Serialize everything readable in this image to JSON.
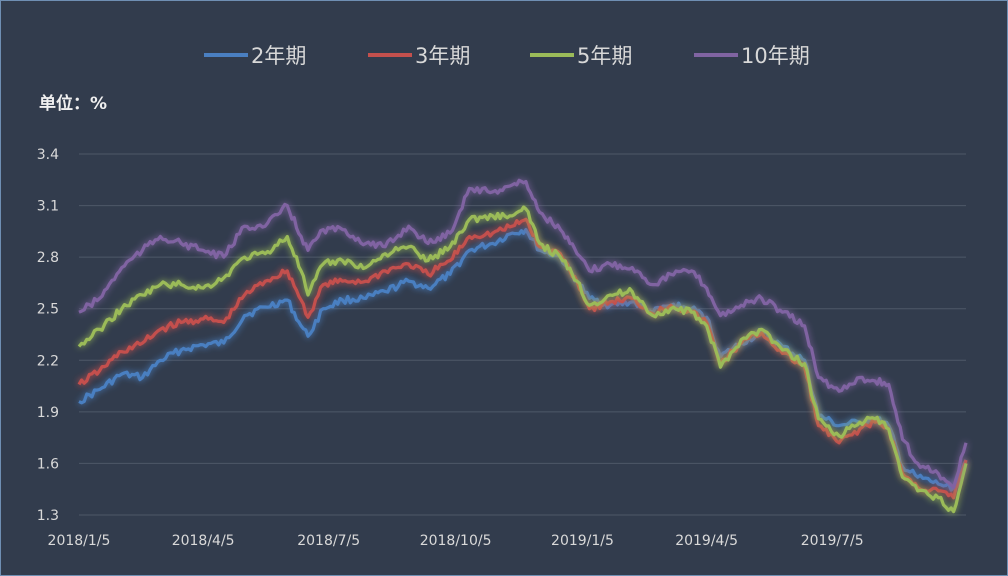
{
  "chart_data": {
    "type": "line",
    "title": "",
    "unit_label": "单位：%",
    "ylim": [
      1.3,
      3.4
    ],
    "yticks": [
      "1.3",
      "1.6",
      "1.9",
      "2.2",
      "2.5",
      "2.8",
      "3.1",
      "3.4"
    ],
    "xticks": [
      "2018/1/5",
      "2018/4/5",
      "2018/7/5",
      "2018/10/5",
      "2019/1/5",
      "2019/4/5",
      "2019/7/5"
    ],
    "grid": true,
    "legend_position": "top",
    "series": [
      {
        "name": "2年期",
        "color": "#4a7fc1",
        "points": [
          [
            "2018-01-05",
            1.96
          ],
          [
            "2018-01-20",
            2.03
          ],
          [
            "2018-02-05",
            2.12
          ],
          [
            "2018-02-20",
            2.1
          ],
          [
            "2018-03-05",
            2.2
          ],
          [
            "2018-03-20",
            2.26
          ],
          [
            "2018-04-05",
            2.29
          ],
          [
            "2018-04-20",
            2.3
          ],
          [
            "2018-05-05",
            2.46
          ],
          [
            "2018-05-20",
            2.51
          ],
          [
            "2018-06-05",
            2.55
          ],
          [
            "2018-06-15",
            2.4
          ],
          [
            "2018-06-20",
            2.34
          ],
          [
            "2018-07-01",
            2.5
          ],
          [
            "2018-07-15",
            2.55
          ],
          [
            "2018-08-01",
            2.56
          ],
          [
            "2018-08-15",
            2.6
          ],
          [
            "2018-09-01",
            2.66
          ],
          [
            "2018-09-15",
            2.62
          ],
          [
            "2018-10-01",
            2.7
          ],
          [
            "2018-10-15",
            2.84
          ],
          [
            "2018-11-01",
            2.88
          ],
          [
            "2018-11-15",
            2.94
          ],
          [
            "2018-11-25",
            2.96
          ],
          [
            "2018-12-05",
            2.84
          ],
          [
            "2018-12-20",
            2.8
          ],
          [
            "2019-01-01",
            2.66
          ],
          [
            "2019-01-10",
            2.56
          ],
          [
            "2019-01-25",
            2.52
          ],
          [
            "2019-02-10",
            2.54
          ],
          [
            "2019-02-25",
            2.48
          ],
          [
            "2019-03-10",
            2.52
          ],
          [
            "2019-03-25",
            2.5
          ],
          [
            "2019-04-05",
            2.45
          ],
          [
            "2019-04-15",
            2.22
          ],
          [
            "2019-04-30",
            2.3
          ],
          [
            "2019-05-15",
            2.36
          ],
          [
            "2019-05-30",
            2.28
          ],
          [
            "2019-06-15",
            2.2
          ],
          [
            "2019-06-25",
            1.88
          ],
          [
            "2019-07-10",
            1.82
          ],
          [
            "2019-07-25",
            1.84
          ],
          [
            "2019-08-05",
            1.86
          ],
          [
            "2019-08-15",
            1.82
          ],
          [
            "2019-08-25",
            1.58
          ],
          [
            "2019-09-05",
            1.52
          ],
          [
            "2019-09-20",
            1.48
          ],
          [
            "2019-10-01",
            1.46
          ],
          [
            "2019-10-10",
            1.62
          ]
        ]
      },
      {
        "name": "3年期",
        "color": "#c4504d",
        "points": [
          [
            "2018-01-05",
            2.06
          ],
          [
            "2018-01-20",
            2.14
          ],
          [
            "2018-02-05",
            2.25
          ],
          [
            "2018-02-20",
            2.3
          ],
          [
            "2018-03-05",
            2.38
          ],
          [
            "2018-03-20",
            2.42
          ],
          [
            "2018-04-05",
            2.44
          ],
          [
            "2018-04-20",
            2.42
          ],
          [
            "2018-05-05",
            2.58
          ],
          [
            "2018-05-20",
            2.66
          ],
          [
            "2018-06-05",
            2.72
          ],
          [
            "2018-06-15",
            2.55
          ],
          [
            "2018-06-20",
            2.45
          ],
          [
            "2018-07-01",
            2.64
          ],
          [
            "2018-07-15",
            2.66
          ],
          [
            "2018-08-01",
            2.66
          ],
          [
            "2018-08-15",
            2.72
          ],
          [
            "2018-09-01",
            2.76
          ],
          [
            "2018-09-15",
            2.7
          ],
          [
            "2018-10-01",
            2.78
          ],
          [
            "2018-10-15",
            2.92
          ],
          [
            "2018-11-01",
            2.94
          ],
          [
            "2018-11-15",
            2.98
          ],
          [
            "2018-11-25",
            3.02
          ],
          [
            "2018-12-05",
            2.86
          ],
          [
            "2018-12-20",
            2.82
          ],
          [
            "2019-01-01",
            2.66
          ],
          [
            "2019-01-10",
            2.5
          ],
          [
            "2019-01-25",
            2.54
          ],
          [
            "2019-02-10",
            2.56
          ],
          [
            "2019-02-25",
            2.47
          ],
          [
            "2019-03-10",
            2.52
          ],
          [
            "2019-03-25",
            2.48
          ],
          [
            "2019-04-05",
            2.42
          ],
          [
            "2019-04-15",
            2.18
          ],
          [
            "2019-04-30",
            2.3
          ],
          [
            "2019-05-15",
            2.36
          ],
          [
            "2019-05-30",
            2.24
          ],
          [
            "2019-06-15",
            2.16
          ],
          [
            "2019-06-25",
            1.82
          ],
          [
            "2019-07-10",
            1.72
          ],
          [
            "2019-07-25",
            1.8
          ],
          [
            "2019-08-05",
            1.84
          ],
          [
            "2019-08-15",
            1.8
          ],
          [
            "2019-08-25",
            1.54
          ],
          [
            "2019-09-05",
            1.46
          ],
          [
            "2019-09-20",
            1.44
          ],
          [
            "2019-10-01",
            1.4
          ],
          [
            "2019-10-10",
            1.62
          ]
        ]
      },
      {
        "name": "5年期",
        "color": "#9bbb59",
        "points": [
          [
            "2018-01-05",
            2.28
          ],
          [
            "2018-01-20",
            2.38
          ],
          [
            "2018-02-05",
            2.5
          ],
          [
            "2018-02-20",
            2.58
          ],
          [
            "2018-03-05",
            2.64
          ],
          [
            "2018-03-20",
            2.64
          ],
          [
            "2018-04-05",
            2.62
          ],
          [
            "2018-04-20",
            2.68
          ],
          [
            "2018-05-05",
            2.8
          ],
          [
            "2018-05-20",
            2.82
          ],
          [
            "2018-06-05",
            2.92
          ],
          [
            "2018-06-15",
            2.72
          ],
          [
            "2018-06-20",
            2.58
          ],
          [
            "2018-07-01",
            2.76
          ],
          [
            "2018-07-15",
            2.78
          ],
          [
            "2018-08-01",
            2.74
          ],
          [
            "2018-08-15",
            2.82
          ],
          [
            "2018-09-01",
            2.86
          ],
          [
            "2018-09-15",
            2.78
          ],
          [
            "2018-10-01",
            2.86
          ],
          [
            "2018-10-15",
            3.02
          ],
          [
            "2018-11-01",
            3.04
          ],
          [
            "2018-11-15",
            3.04
          ],
          [
            "2018-11-25",
            3.08
          ],
          [
            "2018-12-05",
            2.88
          ],
          [
            "2018-12-20",
            2.8
          ],
          [
            "2019-01-01",
            2.66
          ],
          [
            "2019-01-10",
            2.52
          ],
          [
            "2019-01-25",
            2.58
          ],
          [
            "2019-02-10",
            2.6
          ],
          [
            "2019-02-25",
            2.46
          ],
          [
            "2019-03-10",
            2.5
          ],
          [
            "2019-03-25",
            2.48
          ],
          [
            "2019-04-05",
            2.4
          ],
          [
            "2019-04-15",
            2.16
          ],
          [
            "2019-04-30",
            2.32
          ],
          [
            "2019-05-15",
            2.38
          ],
          [
            "2019-05-30",
            2.26
          ],
          [
            "2019-06-15",
            2.18
          ],
          [
            "2019-06-25",
            1.86
          ],
          [
            "2019-07-10",
            1.76
          ],
          [
            "2019-07-25",
            1.84
          ],
          [
            "2019-08-05",
            1.86
          ],
          [
            "2019-08-15",
            1.8
          ],
          [
            "2019-08-25",
            1.52
          ],
          [
            "2019-09-05",
            1.44
          ],
          [
            "2019-09-20",
            1.4
          ],
          [
            "2019-10-01",
            1.32
          ],
          [
            "2019-10-10",
            1.6
          ]
        ]
      },
      {
        "name": "10年期",
        "color": "#8064a2",
        "points": [
          [
            "2018-01-05",
            2.48
          ],
          [
            "2018-01-20",
            2.56
          ],
          [
            "2018-02-05",
            2.74
          ],
          [
            "2018-02-20",
            2.84
          ],
          [
            "2018-03-05",
            2.92
          ],
          [
            "2018-03-20",
            2.88
          ],
          [
            "2018-04-05",
            2.84
          ],
          [
            "2018-04-20",
            2.8
          ],
          [
            "2018-05-05",
            2.98
          ],
          [
            "2018-05-20",
            2.98
          ],
          [
            "2018-06-05",
            3.1
          ],
          [
            "2018-06-15",
            2.92
          ],
          [
            "2018-06-20",
            2.84
          ],
          [
            "2018-07-01",
            2.96
          ],
          [
            "2018-07-15",
            2.96
          ],
          [
            "2018-08-01",
            2.88
          ],
          [
            "2018-08-15",
            2.86
          ],
          [
            "2018-09-01",
            2.98
          ],
          [
            "2018-09-15",
            2.88
          ],
          [
            "2018-10-01",
            2.94
          ],
          [
            "2018-10-15",
            3.2
          ],
          [
            "2018-11-01",
            3.18
          ],
          [
            "2018-11-15",
            3.22
          ],
          [
            "2018-11-25",
            3.24
          ],
          [
            "2018-12-05",
            3.06
          ],
          [
            "2018-12-20",
            2.96
          ],
          [
            "2019-01-01",
            2.82
          ],
          [
            "2019-01-10",
            2.72
          ],
          [
            "2019-01-25",
            2.76
          ],
          [
            "2019-02-10",
            2.74
          ],
          [
            "2019-02-25",
            2.64
          ],
          [
            "2019-03-10",
            2.7
          ],
          [
            "2019-03-25",
            2.72
          ],
          [
            "2019-04-05",
            2.62
          ],
          [
            "2019-04-15",
            2.46
          ],
          [
            "2019-04-30",
            2.52
          ],
          [
            "2019-05-15",
            2.56
          ],
          [
            "2019-05-30",
            2.48
          ],
          [
            "2019-06-15",
            2.4
          ],
          [
            "2019-06-25",
            2.1
          ],
          [
            "2019-07-10",
            2.02
          ],
          [
            "2019-07-25",
            2.1
          ],
          [
            "2019-08-05",
            2.08
          ],
          [
            "2019-08-15",
            2.06
          ],
          [
            "2019-08-25",
            1.74
          ],
          [
            "2019-09-05",
            1.6
          ],
          [
            "2019-09-20",
            1.54
          ],
          [
            "2019-10-01",
            1.46
          ],
          [
            "2019-10-10",
            1.72
          ]
        ]
      }
    ]
  }
}
